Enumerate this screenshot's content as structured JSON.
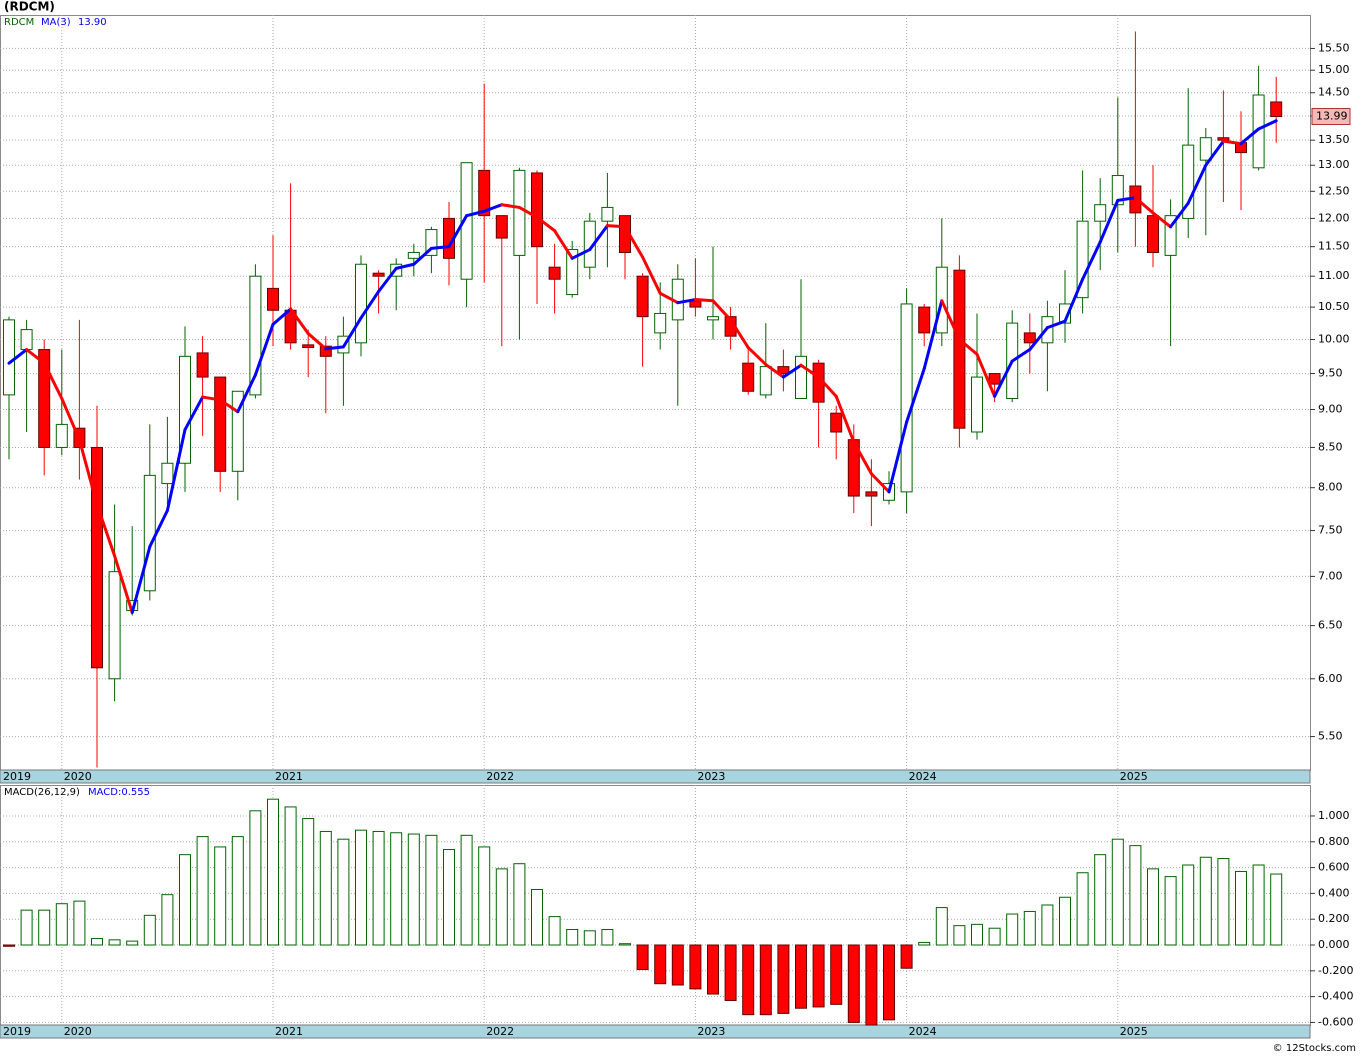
{
  "title": "(RDCM)",
  "footer": "© 12Stocks.com",
  "chart_data": [
    {
      "type": "candlestick",
      "name": "RDCM",
      "log_scale": true,
      "grid": true,
      "categories": [
        "2019",
        null,
        null,
        "2020",
        null,
        null,
        null,
        null,
        null,
        null,
        null,
        null,
        null,
        null,
        null,
        "2021",
        null,
        null,
        null,
        null,
        null,
        null,
        null,
        null,
        null,
        null,
        null,
        "2022",
        null,
        null,
        null,
        null,
        null,
        null,
        null,
        null,
        null,
        null,
        null,
        "2023",
        null,
        null,
        null,
        null,
        null,
        null,
        null,
        null,
        null,
        null,
        null,
        "2024",
        null,
        null,
        null,
        null,
        null,
        null,
        null,
        null,
        null,
        null,
        null,
        "2025",
        null,
        null,
        null,
        null,
        null,
        null,
        null,
        null,
        null
      ],
      "open": [
        9.2,
        9.85,
        9.85,
        8.5,
        8.75,
        8.5,
        6.0,
        6.65,
        6.85,
        8.05,
        8.3,
        9.8,
        9.45,
        8.2,
        9.2,
        10.8,
        10.45,
        9.92,
        9.9,
        9.8,
        9.95,
        11.05,
        11.0,
        11.3,
        11.35,
        12.0,
        10.95,
        12.9,
        12.05,
        11.35,
        12.85,
        11.15,
        10.7,
        11.15,
        11.95,
        12.05,
        11.0,
        10.1,
        10.3,
        10.6,
        10.3,
        10.35,
        9.65,
        9.2,
        9.6,
        9.15,
        9.65,
        8.95,
        8.6,
        7.95,
        7.85,
        7.95,
        10.5,
        10.1,
        11.1,
        8.7,
        9.5,
        9.15,
        10.1,
        9.95,
        10.25,
        10.65,
        11.95,
        12.25,
        12.6,
        12.05,
        11.35,
        12.0,
        13.1,
        13.55,
        13.45,
        12.95,
        14.3
      ],
      "high": [
        10.35,
        10.3,
        10.0,
        9.85,
        10.3,
        9.05,
        7.8,
        7.55,
        8.8,
        8.9,
        10.2,
        10.05,
        9.45,
        9.25,
        11.2,
        11.7,
        12.65,
        10.15,
        10.05,
        10.35,
        11.35,
        11.1,
        11.3,
        11.55,
        11.85,
        12.3,
        13.05,
        14.7,
        12.05,
        12.95,
        12.9,
        11.55,
        11.6,
        12.1,
        12.85,
        12.05,
        11.05,
        10.9,
        11.2,
        11.3,
        11.5,
        10.5,
        9.9,
        10.25,
        9.85,
        10.95,
        9.7,
        9.05,
        8.8,
        8.35,
        8.2,
        10.8,
        10.55,
        12.0,
        11.35,
        10.4,
        9.5,
        10.45,
        10.4,
        10.6,
        11.1,
        12.9,
        12.75,
        14.4,
        15.9,
        13.0,
        12.35,
        14.6,
        13.75,
        14.55,
        14.1,
        15.1,
        14.85
      ],
      "low": [
        8.35,
        8.7,
        8.15,
        8.4,
        8.1,
        5.25,
        5.8,
        6.6,
        6.75,
        7.8,
        7.95,
        8.65,
        7.95,
        7.85,
        9.15,
        9.9,
        9.85,
        9.45,
        8.95,
        9.05,
        9.75,
        10.4,
        10.45,
        11.0,
        11.05,
        10.85,
        10.5,
        10.9,
        9.9,
        10.0,
        10.55,
        10.4,
        10.65,
        10.95,
        11.15,
        10.95,
        9.6,
        9.85,
        9.05,
        10.35,
        10.0,
        9.85,
        9.2,
        9.15,
        9.25,
        9.15,
        8.5,
        8.35,
        7.7,
        7.55,
        7.8,
        7.7,
        9.9,
        9.9,
        8.5,
        8.6,
        9.1,
        9.1,
        9.5,
        9.25,
        9.95,
        10.4,
        11.1,
        11.4,
        11.5,
        11.15,
        9.9,
        11.65,
        11.7,
        12.3,
        12.15,
        12.9,
        13.45
      ],
      "close": [
        10.3,
        10.15,
        8.5,
        8.8,
        8.5,
        6.1,
        7.05,
        6.75,
        8.15,
        8.3,
        9.75,
        9.45,
        8.2,
        9.25,
        11.0,
        10.45,
        9.95,
        9.88,
        9.75,
        10.05,
        11.2,
        11.0,
        11.2,
        11.4,
        11.8,
        11.3,
        13.05,
        12.05,
        11.65,
        12.9,
        11.5,
        10.95,
        11.45,
        11.95,
        12.2,
        11.4,
        10.35,
        10.4,
        10.95,
        10.5,
        10.35,
        10.05,
        9.25,
        9.6,
        9.5,
        9.75,
        9.1,
        8.7,
        7.9,
        7.9,
        8.05,
        10.55,
        10.1,
        11.15,
        8.75,
        9.45,
        9.35,
        10.25,
        9.95,
        10.35,
        10.55,
        11.95,
        12.25,
        12.8,
        12.1,
        11.4,
        12.05,
        13.4,
        13.55,
        13.5,
        13.25,
        14.45,
        13.99
      ],
      "last_label": "13.99",
      "up_color": "#006400",
      "down_color": "#ff0000",
      "series": [
        {
          "name": "MA(3)",
          "color": "#0000ff",
          "up_color": "#0000ff",
          "down_color": "#ff0000",
          "last_value_label": "13.90",
          "values": [
            9.65,
            9.85,
            9.65,
            9.15,
            8.6,
            7.8,
            7.22,
            6.63,
            7.32,
            7.73,
            8.73,
            9.17,
            9.13,
            8.97,
            9.48,
            10.23,
            10.47,
            10.09,
            9.86,
            9.89,
            10.33,
            10.75,
            11.13,
            11.2,
            11.47,
            11.5,
            12.05,
            12.13,
            12.25,
            12.2,
            12.02,
            11.78,
            11.3,
            11.45,
            11.87,
            11.85,
            11.32,
            10.72,
            10.57,
            10.62,
            10.6,
            10.3,
            9.88,
            9.63,
            9.45,
            9.62,
            9.45,
            9.18,
            8.57,
            8.17,
            7.95,
            8.83,
            9.57,
            10.6,
            10,
            9.78,
            9.18,
            9.68,
            9.85,
            10.18,
            10.28,
            10.95,
            11.58,
            12.33,
            12.38,
            12.1,
            11.85,
            12.28,
            13.0,
            13.48,
            13.43,
            13.73,
            13.9
          ]
        }
      ],
      "ylim": [
        5.23,
        16.3
      ],
      "yticks": [
        {
          "value": 5.5,
          "label": "5.50"
        },
        {
          "value": 6,
          "label": "6.00"
        },
        {
          "value": 6.5,
          "label": "6.50"
        },
        {
          "value": 7,
          "label": "7.00"
        },
        {
          "value": 7.5,
          "label": "7.50"
        },
        {
          "value": 8,
          "label": "8.00"
        },
        {
          "value": 8.5,
          "label": "8.50"
        },
        {
          "value": 9,
          "label": "9.00"
        },
        {
          "value": 9.5,
          "label": "9.50"
        },
        {
          "value": 10,
          "label": "10.00"
        },
        {
          "value": 10.5,
          "label": "10.50"
        },
        {
          "value": 11,
          "label": "11.00"
        },
        {
          "value": 11.5,
          "label": "11.50"
        },
        {
          "value": 12,
          "label": "12.00"
        },
        {
          "value": 12.5,
          "label": "12.50"
        },
        {
          "value": 13,
          "label": "13.00"
        },
        {
          "value": 13.5,
          "label": "13.50"
        },
        {
          "value": 14,
          "label": "14.00"
        },
        {
          "value": 14.5,
          "label": "14.50"
        },
        {
          "value": 15,
          "label": "15.00"
        },
        {
          "value": 15.5,
          "label": "15.50"
        }
      ]
    },
    {
      "type": "bar",
      "name": "MACD(26,12,9)",
      "macd_label": "MACD:0.555",
      "grid": true,
      "pos_color": "#006400",
      "neg_color": "#ff0000",
      "values": [
        -0.01,
        0.27,
        0.27,
        0.32,
        0.34,
        0.05,
        0.04,
        0.03,
        0.23,
        0.39,
        0.7,
        0.84,
        0.76,
        0.84,
        1.04,
        1.13,
        1.07,
        0.98,
        0.88,
        0.82,
        0.89,
        0.88,
        0.87,
        0.86,
        0.85,
        0.74,
        0.85,
        0.76,
        0.59,
        0.63,
        0.43,
        0.22,
        0.12,
        0.11,
        0.12,
        0.01,
        -0.19,
        -0.3,
        -0.31,
        -0.34,
        -0.38,
        -0.43,
        -0.54,
        -0.54,
        -0.53,
        -0.49,
        -0.48,
        -0.46,
        -0.6,
        -0.62,
        -0.58,
        -0.18,
        0.02,
        0.29,
        0.15,
        0.16,
        0.13,
        0.24,
        0.26,
        0.31,
        0.37,
        0.56,
        0.7,
        0.82,
        0.77,
        0.59,
        0.53,
        0.62,
        0.68,
        0.67,
        0.57,
        0.62,
        0.55
      ],
      "ylim": [
        -0.62,
        1.24
      ],
      "yticks": [
        {
          "value": 1,
          "label": "1.000"
        },
        {
          "value": 0.8,
          "label": "0.800"
        },
        {
          "value": 0.6,
          "label": "0.600"
        },
        {
          "value": 0.4,
          "label": "0.400"
        },
        {
          "value": 0.2,
          "label": "0.200"
        },
        {
          "value": 0,
          "label": "0.000"
        },
        {
          "value": -0.2,
          "label": "-0.200"
        },
        {
          "value": -0.4,
          "label": "-0.400"
        },
        {
          "value": -0.6,
          "label": "-0.600"
        }
      ]
    }
  ]
}
